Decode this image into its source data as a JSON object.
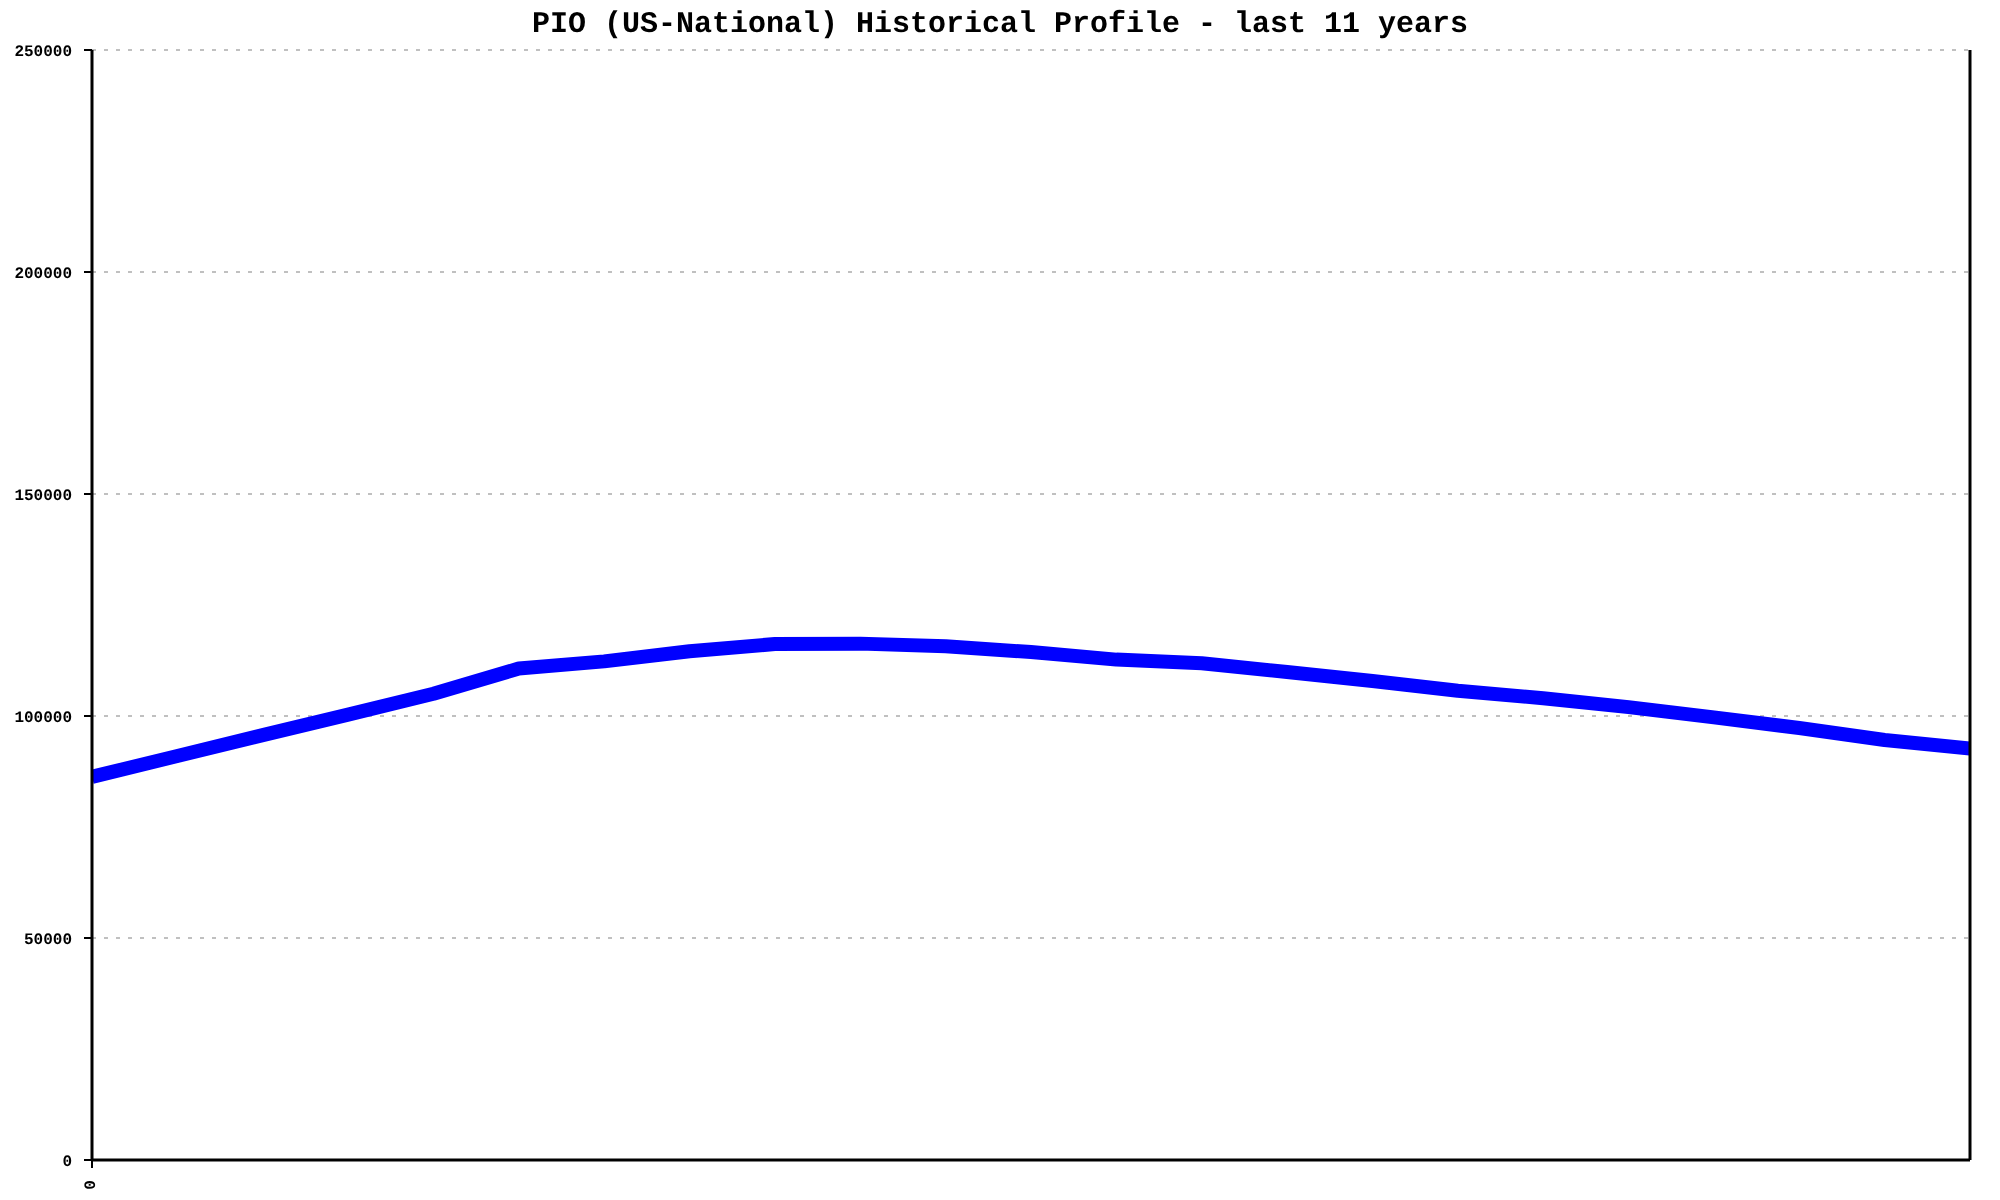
{
  "chart_data": {
    "type": "line",
    "title": "PIO (US-National) Historical Profile - last 11 years",
    "categories": [
      "0",
      null,
      null,
      null,
      null,
      null,
      null,
      null,
      null,
      null,
      null,
      null,
      null,
      null,
      null,
      null,
      null,
      null,
      null,
      null,
      null,
      null,
      null
    ],
    "series": [
      {
        "color": "#0000ff",
        "values": [
          86300,
          91000,
          95700,
          100300,
          105000,
          110700,
          112300,
          114600,
          116200,
          116300,
          115700,
          114400,
          112700,
          111900,
          109900,
          107900,
          105700,
          104000,
          102000,
          99700,
          97300,
          94600,
          92700
        ]
      }
    ],
    "ylim": [
      0,
      250000
    ],
    "yticks": [
      0,
      50000,
      100000,
      150000,
      200000,
      250000
    ],
    "grid": "y",
    "marker": "none",
    "line_style": "solid"
  }
}
